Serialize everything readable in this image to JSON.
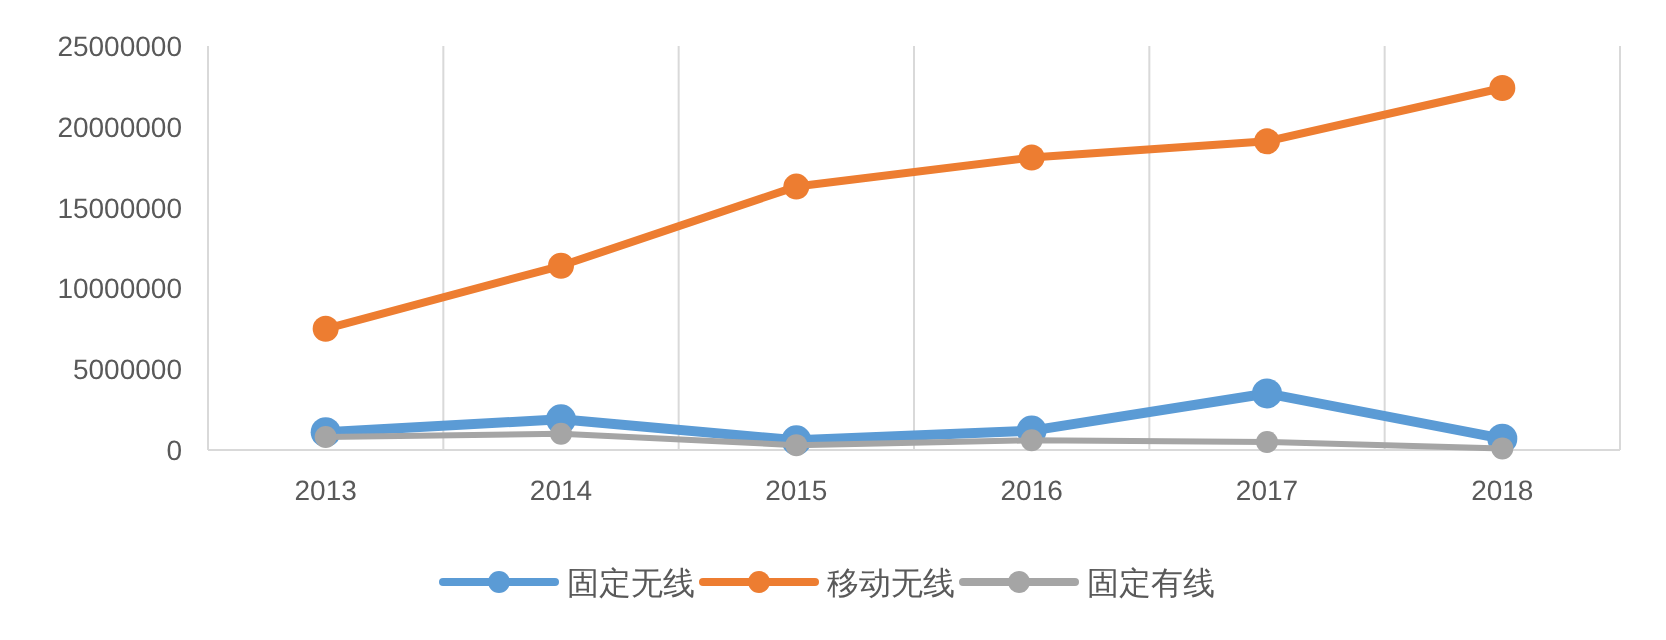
{
  "chart_data": {
    "type": "line",
    "categories": [
      "2013",
      "2014",
      "2015",
      "2016",
      "2017",
      "2018"
    ],
    "series": [
      {
        "name": "固定无线",
        "color": "#5b9bd5",
        "values": [
          1100000,
          1900000,
          600000,
          1200000,
          3500000,
          700000
        ]
      },
      {
        "name": "移动无线",
        "color": "#ed7d31",
        "values": [
          7500000,
          11400000,
          16300000,
          18100000,
          19100000,
          22400000
        ]
      },
      {
        "name": "固定有线",
        "color": "#a5a5a5",
        "values": [
          800000,
          1000000,
          300000,
          600000,
          500000,
          100000
        ]
      }
    ],
    "ylim": [
      0,
      25000000
    ],
    "yticks": [
      0,
      5000000,
      10000000,
      15000000,
      20000000,
      25000000
    ],
    "grid": "x",
    "legend": "bottom",
    "marker": "circle",
    "line_style": "solid"
  }
}
